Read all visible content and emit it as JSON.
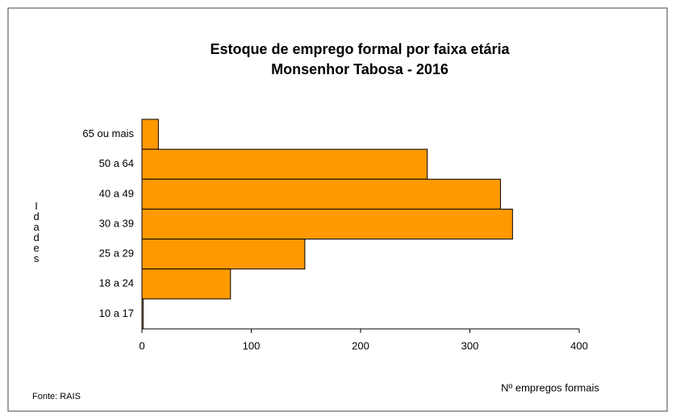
{
  "chart_data": {
    "type": "bar",
    "orientation": "horizontal",
    "title": "Estoque de emprego formal por faixa etária",
    "subtitle": "Monsenhor Tabosa  - 2016",
    "categories": [
      "65 ou mais",
      "50 a 64",
      "40 a 49",
      "30 a 39",
      "25 a 29",
      "18 a 24",
      "10 a 17"
    ],
    "values": [
      15,
      261,
      328,
      339,
      149,
      81,
      1
    ],
    "color": "#ff9900",
    "xlim": [
      0,
      400
    ],
    "xticks": [
      0,
      100,
      200,
      300,
      400
    ],
    "xlabel": "Nº empregos formais",
    "ylabel": "Idades",
    "source": "Fonte: RAIS"
  }
}
